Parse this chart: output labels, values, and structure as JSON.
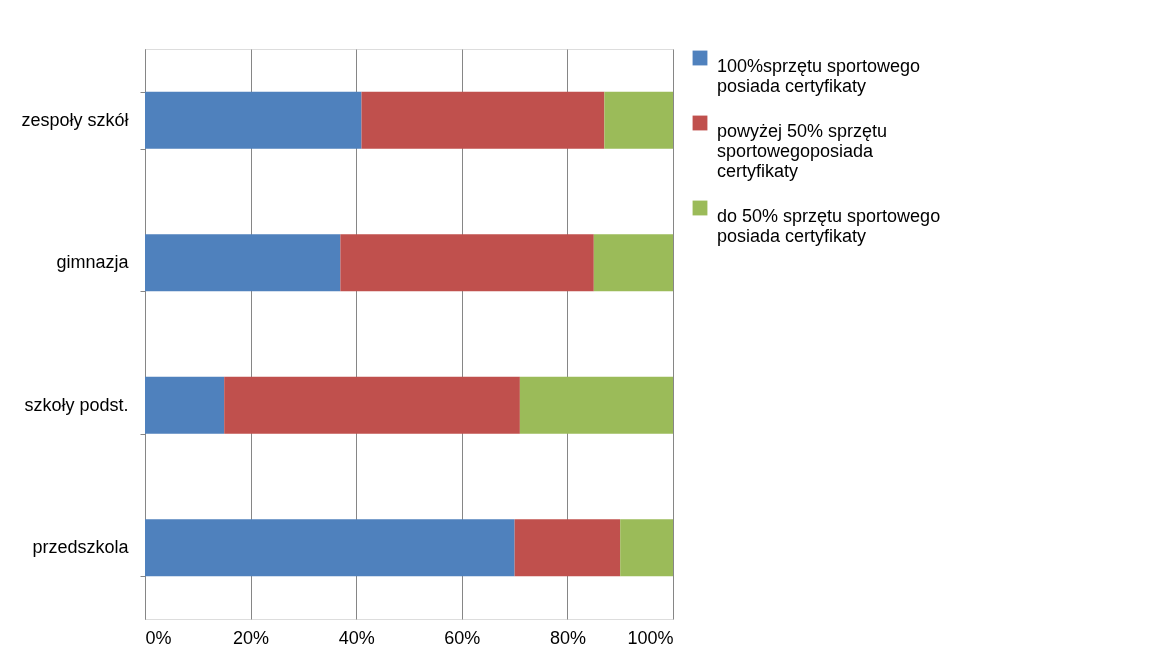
{
  "chart_data": {
    "type": "bar",
    "orientation": "horizontal",
    "stacked": true,
    "categories": [
      "zespoły szkół",
      "gimnazja",
      "szkoły podst.",
      "przedszkola"
    ],
    "series": [
      {
        "name": "100%sprzętu sportowego posiada certyfikaty",
        "color": "#4f81bd",
        "values": [
          41,
          37,
          15,
          70
        ]
      },
      {
        "name": "powyżej 50% sprzętu sportowegoposiada certyfikaty",
        "color": "#c0504d",
        "values": [
          46,
          48,
          56,
          20
        ]
      },
      {
        "name": "do 50% sprzętu sportowego posiada certyfikaty",
        "color": "#9bbb59",
        "values": [
          13,
          15,
          29,
          10
        ]
      }
    ],
    "xlim": [
      0,
      100
    ],
    "xticks": [
      {
        "value": 0,
        "label": "0%"
      },
      {
        "value": 20,
        "label": "20%"
      },
      {
        "value": 40,
        "label": "40%"
      },
      {
        "value": 60,
        "label": "60%"
      },
      {
        "value": 80,
        "label": "80%"
      },
      {
        "value": 100,
        "label": "100%"
      }
    ],
    "grid": "x",
    "legend": "right"
  }
}
